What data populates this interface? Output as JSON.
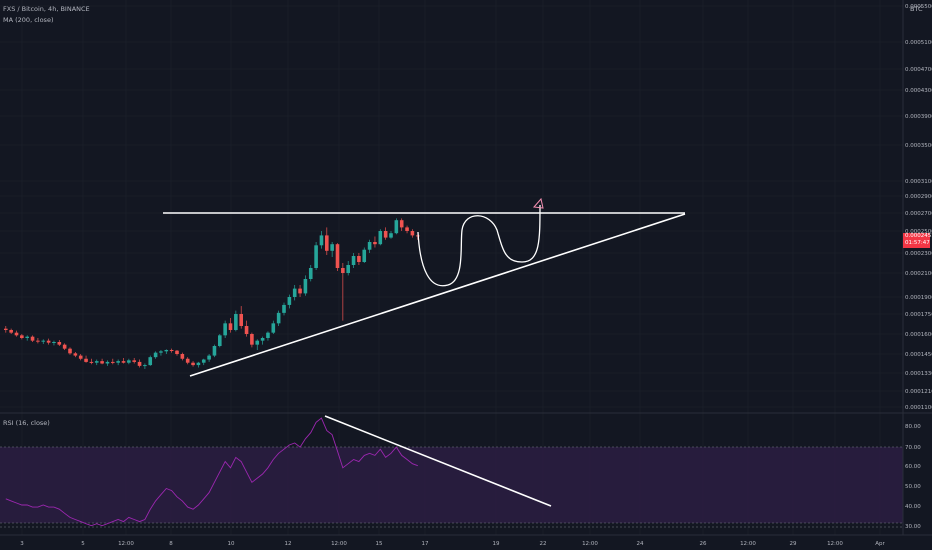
{
  "header": {
    "symbol": "FXS / Bitcoin, 4h, BINANCE",
    "indicator": "MA (200, close)",
    "currency": "BTC"
  },
  "rsi_label": "RSI (16, close)",
  "price_badge": {
    "price": "0.0002451",
    "countdown": "01:57:47"
  },
  "colors": {
    "up": "#26a69a",
    "down": "#ef5350",
    "rsi": "#9c27b0",
    "drawing": "#ffffff",
    "badge": "#f23645"
  },
  "chart_data": [
    {
      "type": "candlestick",
      "y_ticks": [
        "0.0005500",
        "0.0005100",
        "0.0004700",
        "0.0004300",
        "0.0003900",
        "0.0003500",
        "0.0003100",
        "0.0002900",
        "0.0002700",
        "0.0002500",
        "0.0002300",
        "0.0002100",
        "0.0001900",
        "0.0001750",
        "0.0001600",
        "0.0001450",
        "0.0001330",
        "0.0001210",
        "0.0001100"
      ],
      "x_ticks": [
        "3",
        "5",
        "12:00",
        "8",
        "10",
        "12",
        "12:00",
        "15",
        "17",
        "19",
        "22",
        "12:00",
        "24",
        "26",
        "12:00",
        "29",
        "12:00",
        "Apr"
      ],
      "candles": [
        [
          0.000164,
          0.000166,
          0.000161,
          0.000163
        ],
        [
          0.000163,
          0.000164,
          0.00016,
          0.000161
        ],
        [
          0.000161,
          0.0001625,
          0.000158,
          0.000159
        ],
        [
          0.000159,
          0.00016,
          0.000156,
          0.000157
        ],
        [
          0.000157,
          0.000159,
          0.000155,
          0.000158
        ],
        [
          0.000158,
          0.000159,
          0.000154,
          0.000155
        ],
        [
          0.000155,
          0.000157,
          0.000153,
          0.0001545
        ],
        [
          0.0001545,
          0.000156,
          0.0001525,
          0.000155
        ],
        [
          0.000155,
          0.0001565,
          0.000152,
          0.0001535
        ],
        [
          0.0001535,
          0.000155,
          0.0001515,
          0.000154
        ],
        [
          0.000154,
          0.0001555,
          0.000151,
          0.000152
        ],
        [
          0.000152,
          0.000153,
          0.000148,
          0.000149
        ],
        [
          0.000149,
          0.00015,
          0.0001445,
          0.0001455
        ],
        [
          0.0001455,
          0.0001465,
          0.000143,
          0.000144
        ],
        [
          0.000144,
          0.000145,
          0.000141,
          0.000142
        ],
        [
          0.000142,
          0.000144,
          0.0001395,
          0.00014
        ],
        [
          0.00014,
          0.000142,
          0.0001385,
          0.0001395
        ],
        [
          0.0001395,
          0.0001415,
          0.000138,
          0.0001405
        ],
        [
          0.0001405,
          0.000142,
          0.0001385,
          0.000139
        ],
        [
          0.000139,
          0.000141,
          0.0001375,
          0.00014
        ],
        [
          0.00014,
          0.000142,
          0.0001385,
          0.0001395
        ],
        [
          0.0001395,
          0.0001415,
          0.000138,
          0.0001405
        ],
        [
          0.0001405,
          0.0001425,
          0.000139,
          0.0001395
        ],
        [
          0.0001395,
          0.000142,
          0.0001385,
          0.000141
        ],
        [
          0.000141,
          0.0001425,
          0.000139,
          0.00014
        ],
        [
          0.00014,
          0.0001415,
          0.0001365,
          0.0001375
        ],
        [
          0.0001375,
          0.000139,
          0.0001355,
          0.000138
        ],
        [
          0.000138,
          0.000144,
          0.0001375,
          0.000143
        ],
        [
          0.000143,
          0.000147,
          0.000142,
          0.000146
        ],
        [
          0.000146,
          0.000148,
          0.000144,
          0.000147
        ],
        [
          0.000147,
          0.0001485,
          0.000145,
          0.000148
        ],
        [
          0.000148,
          0.000149,
          0.000146,
          0.0001475
        ],
        [
          0.0001475,
          0.000148,
          0.000144,
          0.000145
        ],
        [
          0.000145,
          0.000146,
          0.000141,
          0.000142
        ],
        [
          0.000142,
          0.000143,
          0.0001385,
          0.0001395
        ],
        [
          0.0001395,
          0.0001405,
          0.000137,
          0.000138
        ],
        [
          0.000138,
          0.00014,
          0.0001365,
          0.0001395
        ],
        [
          0.0001395,
          0.000142,
          0.000138,
          0.0001415
        ],
        [
          0.0001415,
          0.000145,
          0.00014,
          0.000144
        ],
        [
          0.000144,
          0.000152,
          0.000143,
          0.000151
        ],
        [
          0.000151,
          0.00016,
          0.00015,
          0.000159
        ],
        [
          0.000159,
          0.00017,
          0.000157,
          0.000168
        ],
        [
          0.000168,
          0.000172,
          0.000161,
          0.000163
        ],
        [
          0.000163,
          0.000178,
          0.000162,
          0.000175
        ],
        [
          0.000175,
          0.000182,
          0.000164,
          0.000166
        ],
        [
          0.000166,
          0.00017,
          0.000158,
          0.00016
        ],
        [
          0.00016,
          0.000161,
          0.00015,
          0.000152
        ],
        [
          0.000152,
          0.000156,
          0.000148,
          0.000155
        ],
        [
          0.000155,
          0.000158,
          0.000152,
          0.000157
        ],
        [
          0.000157,
          0.000162,
          0.000155,
          0.000161
        ],
        [
          0.000161,
          0.00017,
          0.00016,
          0.000168
        ],
        [
          0.000168,
          0.000178,
          0.000166,
          0.000176
        ],
        [
          0.000176,
          0.000185,
          0.000174,
          0.000183
        ],
        [
          0.000183,
          0.000192,
          0.00018,
          0.00019
        ],
        [
          0.00019,
          0.0002,
          0.000187,
          0.000197
        ],
        [
          0.000197,
          0.0002,
          0.00019,
          0.000193
        ],
        [
          0.000193,
          0.000208,
          0.000191,
          0.000205
        ],
        [
          0.000205,
          0.000218,
          0.000203,
          0.000215
        ],
        [
          0.000215,
          0.00024,
          0.000213,
          0.000237
        ],
        [
          0.000237,
          0.00025,
          0.000234,
          0.000246
        ],
        [
          0.000246,
          0.000254,
          0.000228,
          0.000232
        ],
        [
          0.000232,
          0.00024,
          0.000226,
          0.000238
        ],
        [
          0.000238,
          0.000239,
          0.000212,
          0.000215
        ],
        [
          0.000215,
          0.00022,
          0.00017,
          0.00021
        ],
        [
          0.00021,
          0.000222,
          0.000208,
          0.000218
        ],
        [
          0.000218,
          0.00023,
          0.000215,
          0.000227
        ],
        [
          0.000227,
          0.00023,
          0.000218,
          0.000221
        ],
        [
          0.000221,
          0.000235,
          0.00022,
          0.000233
        ],
        [
          0.000233,
          0.000242,
          0.00023,
          0.00024
        ],
        [
          0.00024,
          0.000245,
          0.000235,
          0.000238
        ],
        [
          0.000238,
          0.000252,
          0.000237,
          0.00025
        ],
        [
          0.00025,
          0.000254,
          0.000242,
          0.000244
        ],
        [
          0.000244,
          0.00025,
          0.000243,
          0.000248
        ],
        [
          0.000248,
          0.000264,
          0.000247,
          0.000262
        ],
        [
          0.000262,
          0.000264,
          0.00025,
          0.000254
        ],
        [
          0.000254,
          0.000256,
          0.000248,
          0.00025
        ],
        [
          0.00025,
          0.000252,
          0.000244,
          0.000246
        ],
        [
          0.000246,
          0.000249,
          0.000242,
          0.0002451
        ]
      ]
    },
    {
      "type": "line",
      "name": "RSI (16, close)",
      "y_ticks": [
        "80.00",
        "70.00",
        "60.00",
        "50.00",
        "40.00",
        "30.00"
      ],
      "ylim": [
        28,
        86
      ],
      "values": [
        45,
        44,
        43,
        42,
        42,
        41,
        41,
        42,
        41,
        41,
        40,
        38,
        36,
        35,
        34,
        33,
        32,
        33,
        32,
        33,
        34,
        35,
        34,
        36,
        35,
        34,
        35,
        40,
        44,
        47,
        50,
        49,
        46,
        44,
        41,
        40,
        42,
        45,
        48,
        53,
        58,
        63,
        60,
        65,
        63,
        58,
        53,
        55,
        57,
        60,
        64,
        67,
        69,
        71,
        72,
        70,
        74,
        77,
        82,
        84,
        78,
        76,
        68,
        60,
        62,
        64,
        63,
        66,
        67,
        66,
        69,
        65,
        67,
        70,
        66,
        64,
        62,
        61
      ]
    }
  ]
}
